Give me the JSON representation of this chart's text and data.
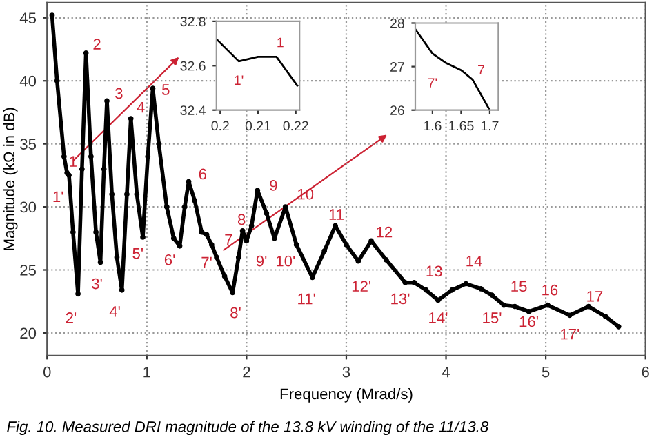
{
  "chart_data": [
    {
      "type": "line",
      "xlabel": "Frequency (Mrad/s)",
      "ylabel": "Magnitude (kΩ in dB)",
      "xlim": [
        0,
        6
      ],
      "ylim": [
        18.2,
        46.2
      ],
      "xticks": [
        0,
        1,
        2,
        3,
        4,
        5,
        6
      ],
      "yticks": [
        20,
        25,
        30,
        35,
        40,
        45
      ],
      "grid": true,
      "marker": "circle",
      "line_style": "solid",
      "series": [
        {
          "color": "#000000",
          "x": [
            0.05,
            0.1,
            0.17,
            0.2,
            0.21,
            0.22,
            0.26,
            0.31,
            0.35,
            0.39,
            0.44,
            0.49,
            0.535,
            0.57,
            0.6,
            0.65,
            0.7,
            0.75,
            0.8,
            0.84,
            0.9,
            0.96,
            1.01,
            1.06,
            1.12,
            1.2,
            1.27,
            1.33,
            1.38,
            1.42,
            1.48,
            1.55,
            1.6,
            1.65,
            1.7,
            1.78,
            1.86,
            1.92,
            1.96,
            2.0,
            2.05,
            2.11,
            2.2,
            2.28,
            2.39,
            2.5,
            2.66,
            2.78,
            2.89,
            3.0,
            3.12,
            3.25,
            3.4,
            3.59,
            3.68,
            3.8,
            3.92,
            4.06,
            4.2,
            4.35,
            4.46,
            4.58,
            4.69,
            4.83,
            5.02,
            5.24,
            5.43,
            5.6,
            5.73
          ],
          "values": [
            45.2,
            40,
            34,
            32.7,
            32.6,
            32.5,
            28,
            23.1,
            33,
            42.2,
            34,
            28,
            25.6,
            33,
            38.4,
            31,
            26,
            23.4,
            31,
            37,
            31,
            27.6,
            34,
            39.4,
            35,
            30,
            27.5,
            26.9,
            30,
            32,
            30.5,
            28,
            27.8,
            27,
            26,
            24.5,
            23.2,
            26,
            28.1,
            27.3,
            28.5,
            31.3,
            29.5,
            27.5,
            30,
            27,
            24.4,
            26.5,
            28.5,
            27,
            25.7,
            27.3,
            25.8,
            24.0,
            24.0,
            23.4,
            22.6,
            23.4,
            23.9,
            23.5,
            23.0,
            22.2,
            22.1,
            21.7,
            22.2,
            21.4,
            22.1,
            21.3,
            20.5
          ]
        }
      ],
      "annotations": [
        {
          "text": "1'",
          "x": 0.2,
          "y": 32.7
        },
        {
          "text": "1",
          "x": 0.22,
          "y": 32.5
        },
        {
          "text": "2",
          "x": 0.39,
          "y": 42.2
        },
        {
          "text": "2'",
          "x": 0.31,
          "y": 23.1
        },
        {
          "text": "3",
          "x": 0.6,
          "y": 38.4
        },
        {
          "text": "3'",
          "x": 0.535,
          "y": 25.6
        },
        {
          "text": "4",
          "x": 0.84,
          "y": 37
        },
        {
          "text": "4'",
          "x": 0.75,
          "y": 23.4
        },
        {
          "text": "5",
          "x": 1.06,
          "y": 39.4
        },
        {
          "text": "5'",
          "x": 0.96,
          "y": 27.6
        },
        {
          "text": "6",
          "x": 1.42,
          "y": 32
        },
        {
          "text": "6'",
          "x": 1.33,
          "y": 26.9
        },
        {
          "text": "7",
          "x": 1.7,
          "y": 26
        },
        {
          "text": "7'",
          "x": 1.6,
          "y": 27.8
        },
        {
          "text": "8",
          "x": 1.96,
          "y": 28.1
        },
        {
          "text": "8'",
          "x": 1.86,
          "y": 23.2
        },
        {
          "text": "9",
          "x": 2.11,
          "y": 31.3
        },
        {
          "text": "9'",
          "x": 2.28,
          "y": 27.5
        },
        {
          "text": "10",
          "x": 2.39,
          "y": 30
        },
        {
          "text": "10'",
          "x": 2.5,
          "y": 27
        },
        {
          "text": "11",
          "x": 2.89,
          "y": 28.5
        },
        {
          "text": "11'",
          "x": 2.66,
          "y": 24.4
        },
        {
          "text": "12",
          "x": 3.25,
          "y": 27.3
        },
        {
          "text": "12'",
          "x": 3.12,
          "y": 25.7
        },
        {
          "text": "13",
          "x": 3.68,
          "y": 24.0
        },
        {
          "text": "13'",
          "x": 3.59,
          "y": 24.0
        },
        {
          "text": "14",
          "x": 4.2,
          "y": 23.9
        },
        {
          "text": "14'",
          "x": 3.92,
          "y": 22.6
        },
        {
          "text": "15",
          "x": 4.58,
          "y": 22.2
        },
        {
          "text": "15'",
          "x": 4.46,
          "y": 23.0
        },
        {
          "text": "16",
          "x": 5.02,
          "y": 22.2
        },
        {
          "text": "16'",
          "x": 4.83,
          "y": 21.7
        },
        {
          "text": "17",
          "x": 5.43,
          "y": 22.1
        },
        {
          "text": "17'",
          "x": 5.24,
          "y": 21.4
        },
        "Fig. 10. Measured DRI magnitude of the 13.8 kV winding of the 11/13.8"
      ]
    },
    {
      "type": "line",
      "xlim": [
        0.199,
        0.221
      ],
      "ylim": [
        32.4,
        32.8
      ],
      "xticks": [
        0.2,
        0.21,
        0.22
      ],
      "yticks": [
        32.4,
        32.6,
        32.8
      ],
      "line_style": "solid",
      "series": [
        {
          "color": "#000000",
          "x": [
            0.199,
            0.2049,
            0.21,
            0.2149,
            0.2204
          ],
          "values": [
            32.72,
            32.62,
            32.64,
            32.64,
            32.51
          ]
        }
      ],
      "annotations": [
        {
          "text": "1'",
          "x": 0.2049,
          "y": 32.62
        },
        {
          "text": "1",
          "x": 0.2149,
          "y": 32.64
        }
      ]
    },
    {
      "type": "line",
      "xlim": [
        1.57,
        1.715
      ],
      "ylim": [
        26,
        28
      ],
      "xticks": [
        1.6,
        1.65,
        1.7
      ],
      "yticks": [
        26,
        27,
        28
      ],
      "line_style": "solid",
      "series": [
        {
          "color": "#000000",
          "x": [
            1.57,
            1.6,
            1.624,
            1.65,
            1.67,
            1.7
          ],
          "values": [
            27.86,
            27.3,
            27.08,
            26.92,
            26.7,
            26.0
          ]
        }
      ],
      "annotations": [
        {
          "text": "7'",
          "x": 1.6,
          "y": 27.3
        },
        {
          "text": "7",
          "x": 1.67,
          "y": 26.7
        }
      ]
    }
  ]
}
